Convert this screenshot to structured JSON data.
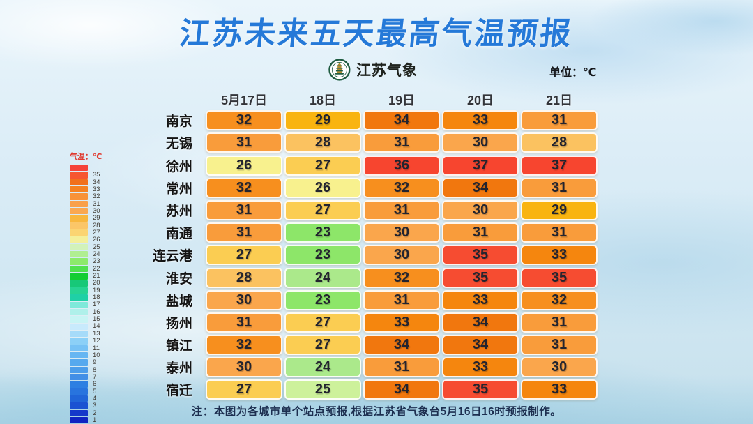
{
  "title": "江苏未来五天最高气温预报",
  "logo": {
    "name": "江苏气象"
  },
  "unit_label": "单位：℃",
  "note": "注：本图为各城市单个站点预报,根据江苏省气象台5月16日16时预报制作。",
  "legend": {
    "title": "气温：℃",
    "entries": [
      {
        "label": "",
        "color": "#f5423a"
      },
      {
        "label": "35",
        "color": "#f65630"
      },
      {
        "label": "34",
        "color": "#f1701c"
      },
      {
        "label": "33",
        "color": "#f58222"
      },
      {
        "label": "32",
        "color": "#f89238"
      },
      {
        "label": "31",
        "color": "#f9a04a"
      },
      {
        "label": "30",
        "color": "#faa851"
      },
      {
        "label": "29",
        "color": "#f8b73e"
      },
      {
        "label": "28",
        "color": "#fbc668"
      },
      {
        "label": "27",
        "color": "#fbd472"
      },
      {
        "label": "26",
        "color": "#f4ef9a"
      },
      {
        "label": "25",
        "color": "#d2f2ba"
      },
      {
        "label": "24",
        "color": "#b0ee92"
      },
      {
        "label": "23",
        "color": "#8cea6b"
      },
      {
        "label": "22",
        "color": "#50e14f"
      },
      {
        "label": "21",
        "color": "#13cd33"
      },
      {
        "label": "20",
        "color": "#17c878"
      },
      {
        "label": "19",
        "color": "#26d393"
      },
      {
        "label": "18",
        "color": "#1fd0a6"
      },
      {
        "label": "17",
        "color": "#7fe9da"
      },
      {
        "label": "16",
        "color": "#aff0ea"
      },
      {
        "label": "15",
        "color": "#c8f4f4"
      },
      {
        "label": "14",
        "color": "#c8eafc"
      },
      {
        "label": "13",
        "color": "#a6dbf9"
      },
      {
        "label": "12",
        "color": "#8cd0f7"
      },
      {
        "label": "11",
        "color": "#77c2f5"
      },
      {
        "label": "10",
        "color": "#66b6f2"
      },
      {
        "label": "9",
        "color": "#56a9ee"
      },
      {
        "label": "8",
        "color": "#4c9dea"
      },
      {
        "label": "7",
        "color": "#428fe6"
      },
      {
        "label": "6",
        "color": "#2d7fe2"
      },
      {
        "label": "5",
        "color": "#2874de"
      },
      {
        "label": "4",
        "color": "#2065d8"
      },
      {
        "label": "3",
        "color": "#1a52d2"
      },
      {
        "label": "2",
        "color": "#1438ca"
      },
      {
        "label": "1",
        "color": "#0f23c2"
      }
    ]
  },
  "colors": {
    "title_blue": "#2579d8",
    "legend_title_red": "#e03a2f",
    "badge_green": "#1e5b40",
    "badge_gold": "#b08d2f",
    "temp_map": {
      "37": "#f7452f",
      "36": "#f7452f",
      "35": "#f64c31",
      "34": "#f1770e",
      "33": "#f5860e",
      "32": "#f78f1e",
      "31": "#f99c3b",
      "30": "#faa64c",
      "29": "#f9b410",
      "28": "#fbc260",
      "27": "#fbcd52",
      "26": "#f8f18e",
      "25": "#cdf19b",
      "24": "#abe98b",
      "23": "#8de669"
    }
  },
  "chart_data": {
    "type": "heatmap",
    "title": "江苏未来五天最高气温预报",
    "unit": "°C",
    "columns": [
      "5月17日",
      "18日",
      "19日",
      "20日",
      "21日"
    ],
    "rows": [
      {
        "city": "南京",
        "values": [
          32,
          29,
          34,
          33,
          31
        ]
      },
      {
        "city": "无锡",
        "values": [
          31,
          28,
          31,
          30,
          28
        ]
      },
      {
        "city": "徐州",
        "values": [
          26,
          27,
          36,
          37,
          37
        ]
      },
      {
        "city": "常州",
        "values": [
          32,
          26,
          32,
          34,
          31
        ]
      },
      {
        "city": "苏州",
        "values": [
          31,
          27,
          31,
          30,
          29
        ]
      },
      {
        "city": "南通",
        "values": [
          31,
          23,
          30,
          31,
          31
        ]
      },
      {
        "city": "连云港",
        "values": [
          27,
          23,
          30,
          35,
          33
        ]
      },
      {
        "city": "淮安",
        "values": [
          28,
          24,
          32,
          35,
          35
        ]
      },
      {
        "city": "盐城",
        "values": [
          30,
          23,
          31,
          33,
          32
        ]
      },
      {
        "city": "扬州",
        "values": [
          31,
          27,
          33,
          34,
          31
        ]
      },
      {
        "city": "镇江",
        "values": [
          32,
          27,
          34,
          34,
          31
        ]
      },
      {
        "city": "泰州",
        "values": [
          30,
          24,
          31,
          33,
          30
        ]
      },
      {
        "city": "宿迁",
        "values": [
          27,
          25,
          34,
          35,
          33
        ]
      }
    ],
    "legend_scale_range": [
      1,
      35
    ],
    "note": "注：本图为各城市单个站点预报,根据江苏省气象台5月16日16时预报制作。"
  }
}
